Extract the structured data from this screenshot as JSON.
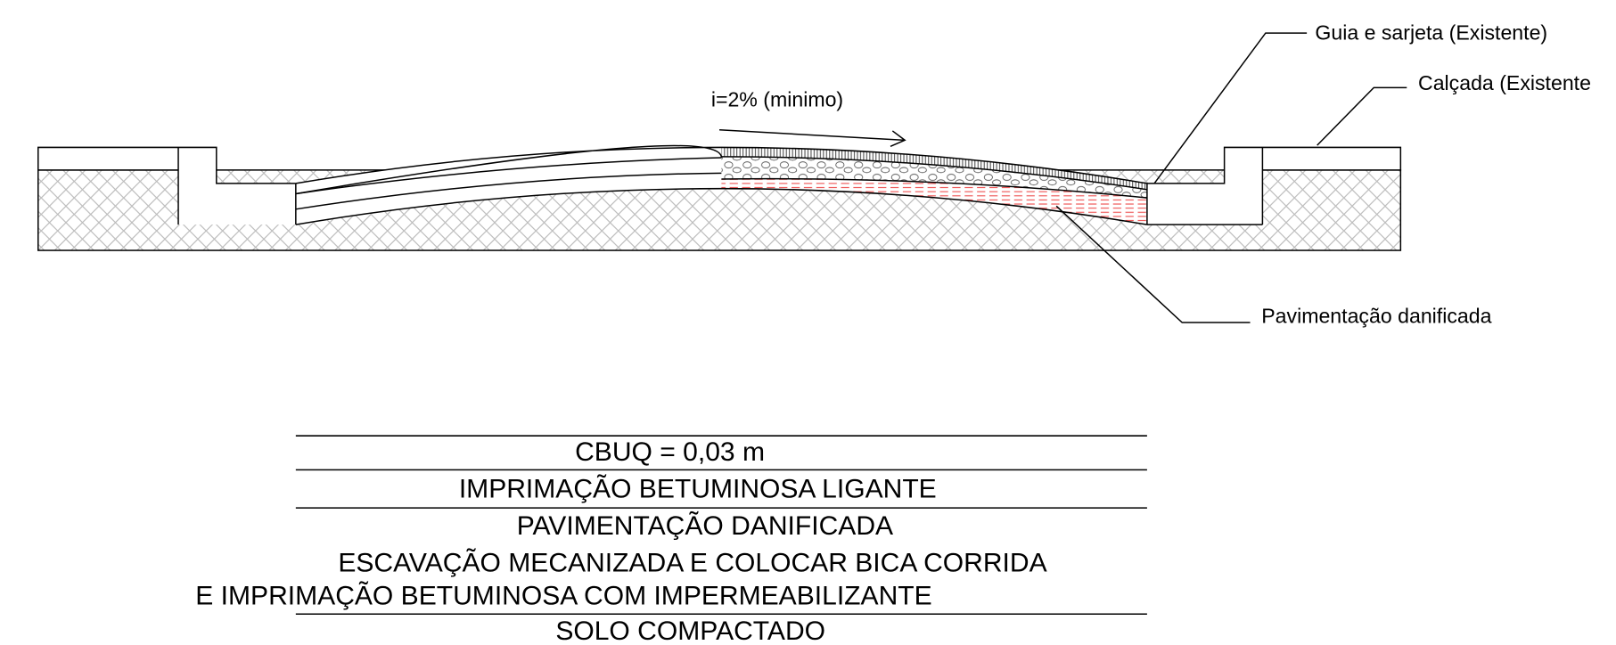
{
  "annotations": {
    "curb": "Guia e sarjeta (Existente)",
    "sidewalk": "Calçada (Existente",
    "slope": "i=2% (minimo)",
    "damaged": "Pavimentação danificada"
  },
  "layers": [
    "CBUQ = 0,03 m",
    "IMPRIMAÇÃO BETUMINOSA LIGANTE",
    "PAVIMENTAÇÃO DANIFICADA",
    "ESCAVAÇÃO MECANIZADA E COLOCAR BICA CORRIDA",
    "E IMPRIMAÇÃO BETUMINOSA COM IMPERMEABILIZANTE",
    "SOLO COMPACTADO"
  ]
}
